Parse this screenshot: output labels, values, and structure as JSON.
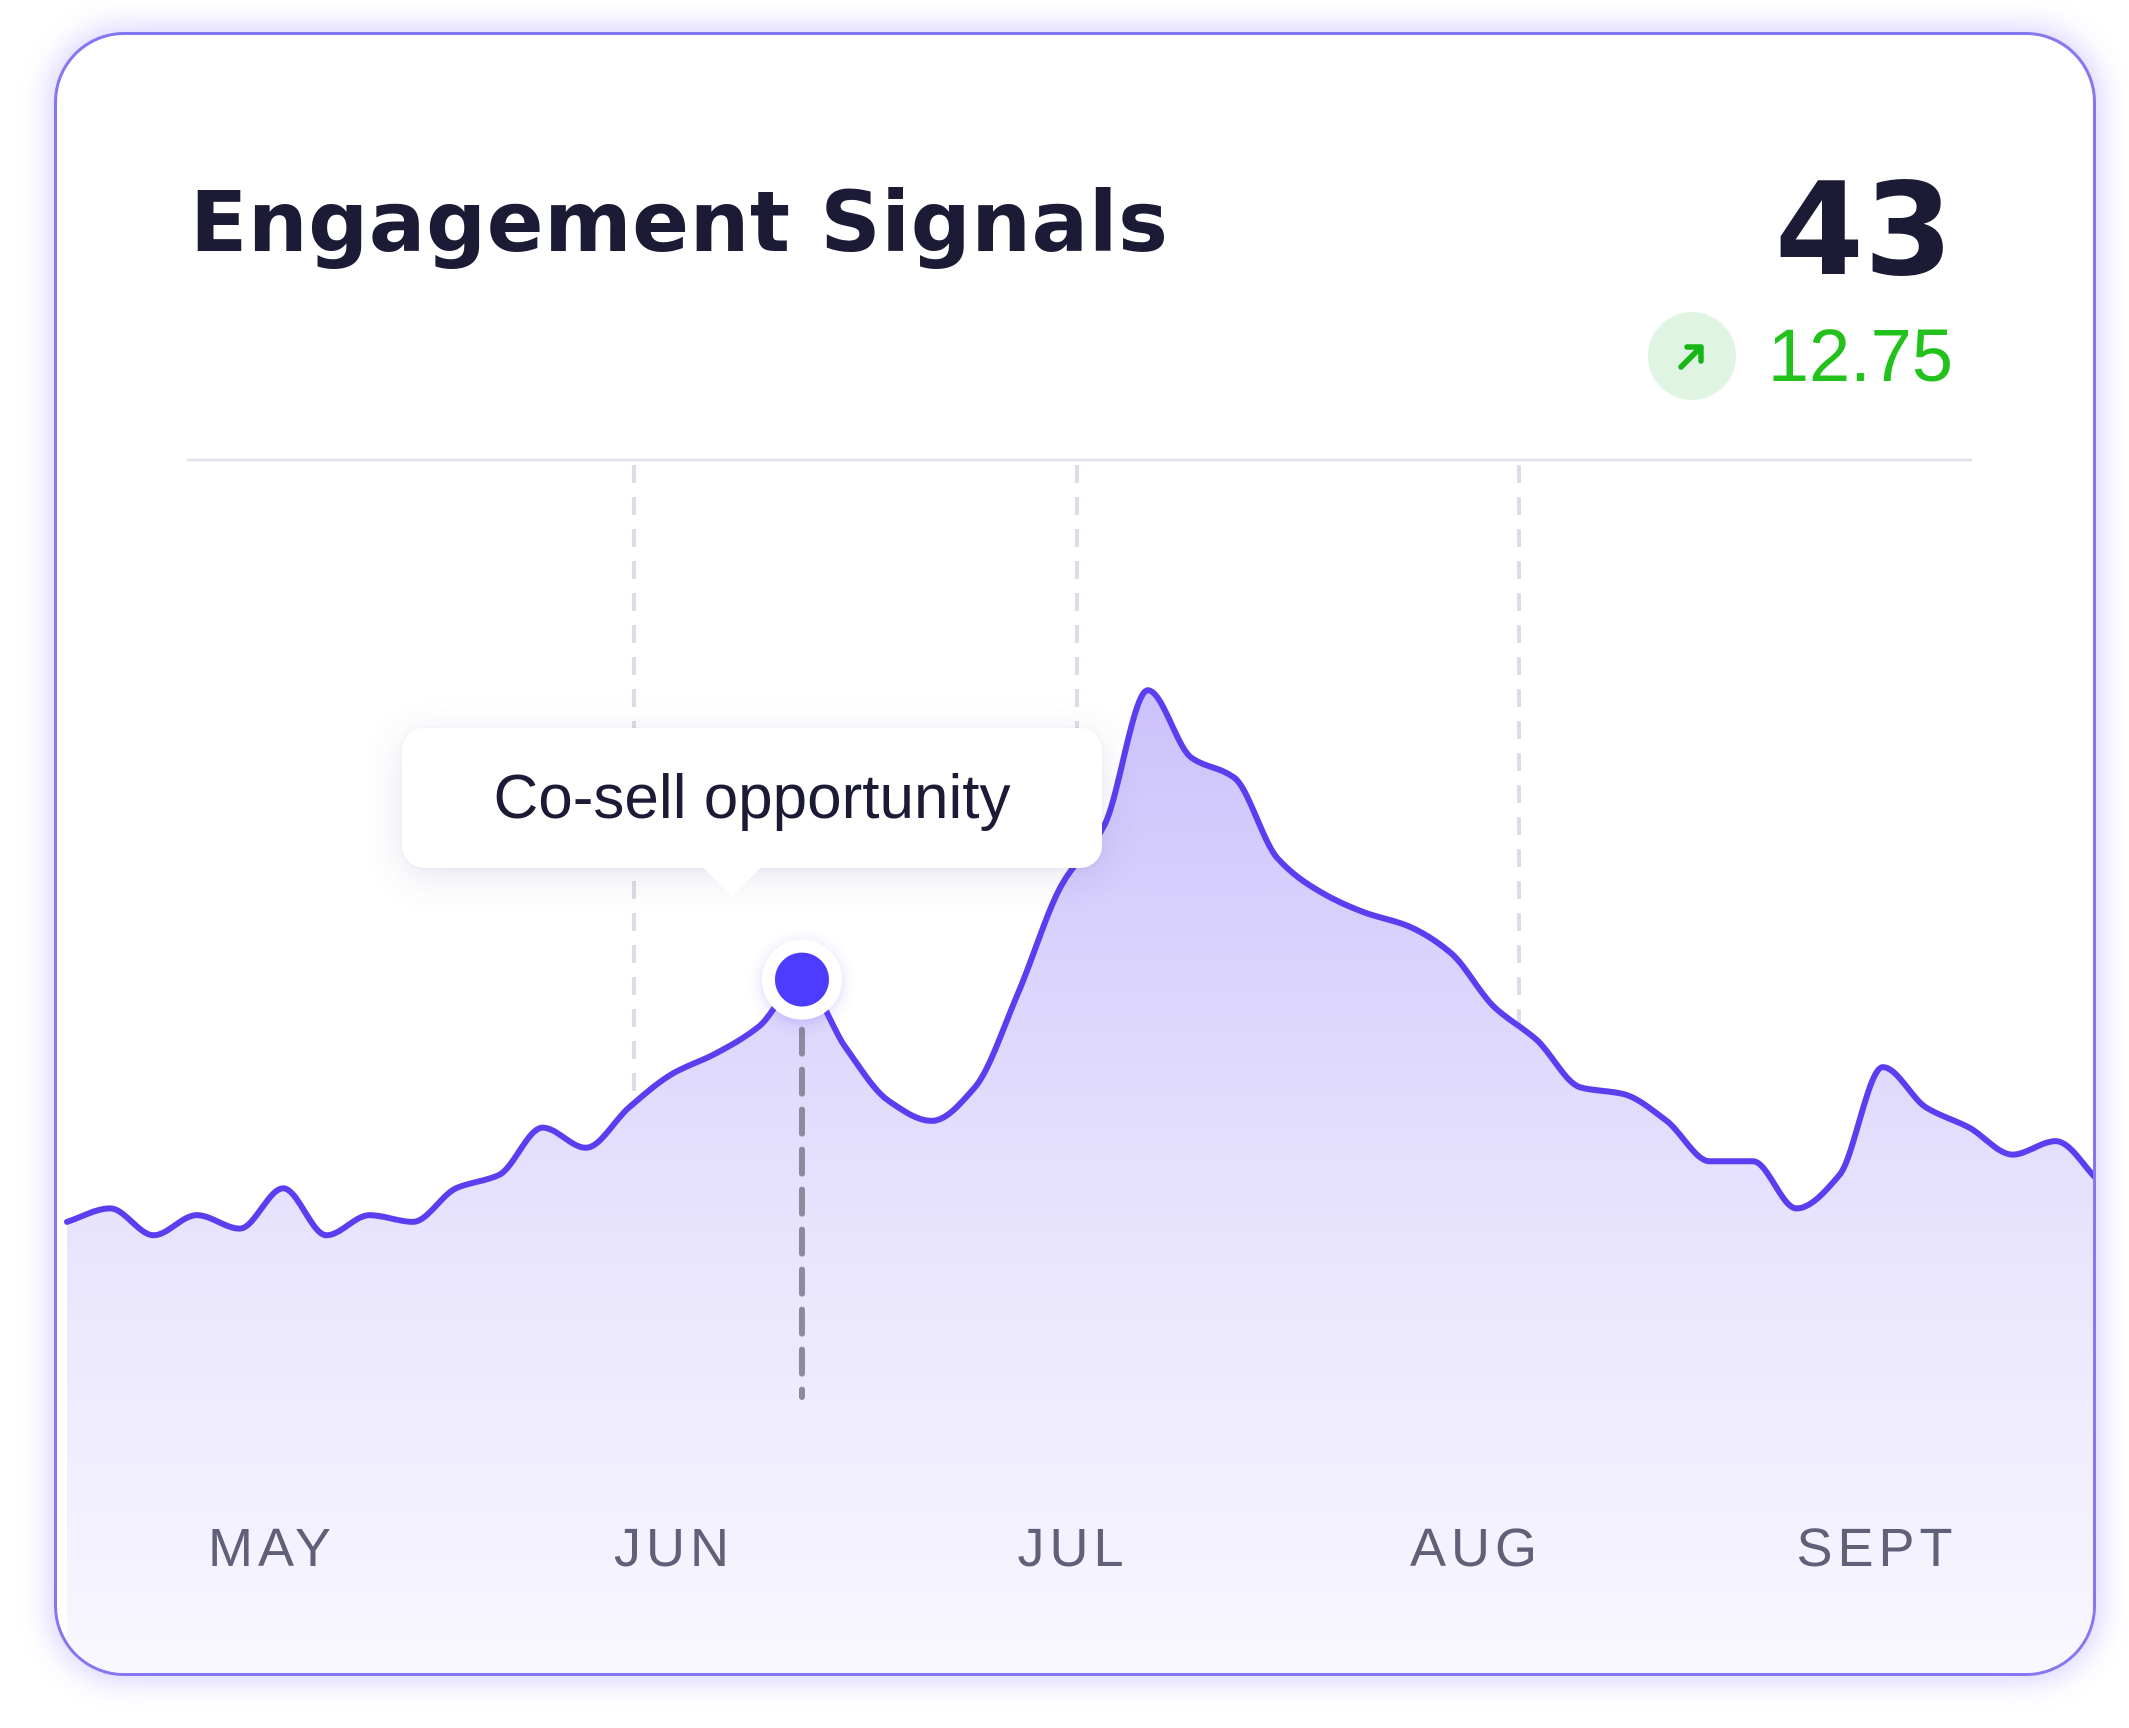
{
  "card": {
    "title": "Engagement Signals",
    "metric_value": "43",
    "delta_value": "12.75",
    "delta_direction": "up",
    "delta_icon": "arrow-up-right-icon"
  },
  "colors": {
    "line": "#5a3ff0",
    "marker": "#4b3cff",
    "positive": "#22c11c",
    "border": "#8577f0"
  },
  "chart_data": {
    "type": "area",
    "title": "Engagement Signals",
    "xlabel": "",
    "ylabel": "",
    "x_tick_labels": [
      "MAY",
      "JUN",
      "JUL",
      "AUG",
      "SEPT"
    ],
    "ylim": [
      0,
      100
    ],
    "grid": "vertical dashed lines at month boundaries",
    "series": [
      {
        "values": [
          18,
          20,
          16,
          19,
          17,
          23,
          16,
          19,
          18,
          23,
          25,
          32,
          29,
          35,
          40,
          43,
          47,
          54,
          44,
          36,
          33,
          38,
          52,
          68,
          77,
          97,
          87,
          84,
          72,
          67,
          64,
          62,
          58,
          50,
          45,
          38,
          37,
          33,
          27,
          27,
          20,
          25,
          41,
          35,
          32,
          28,
          30,
          24
        ]
      }
    ],
    "annotation": {
      "label": "Co-sell opportunity",
      "point_index": 17,
      "value": 54
    }
  }
}
